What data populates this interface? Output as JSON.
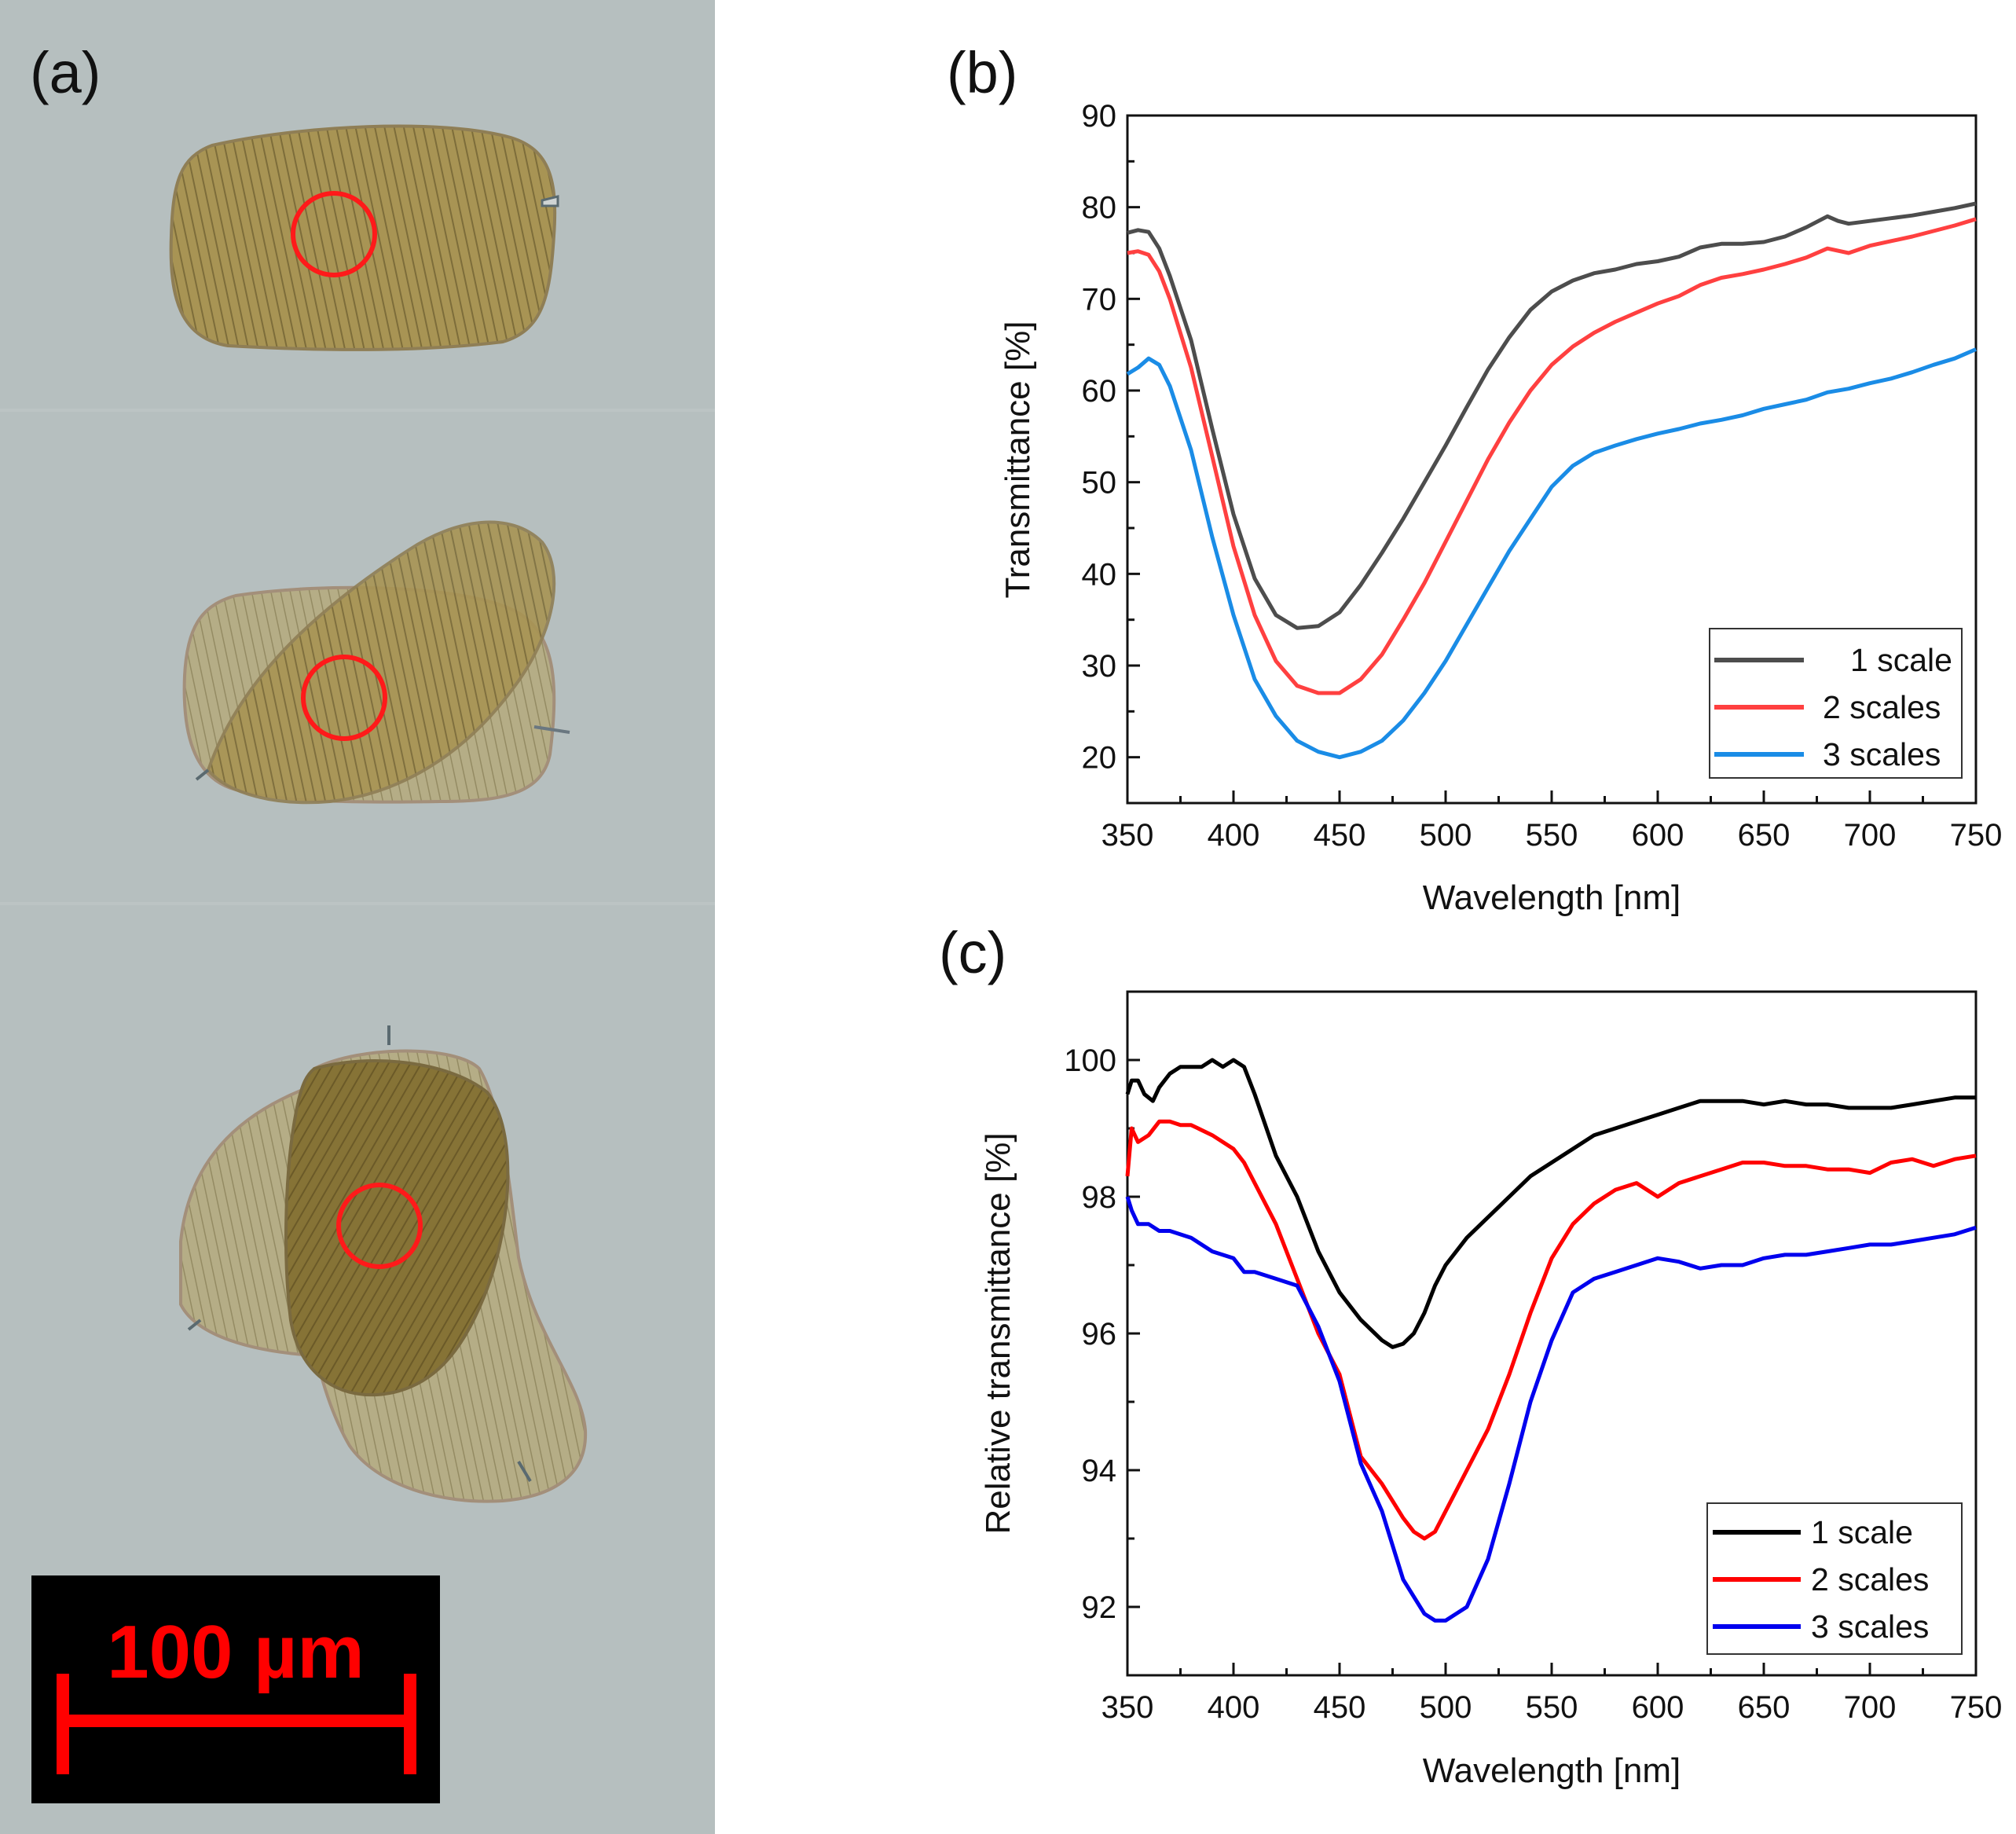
{
  "panel_a": {
    "label": "(a)",
    "scale_bar_text": "100 µm",
    "scale_bar_color": "#ff0000",
    "background_color": "#b4bdbd",
    "scale_fill": "#9c8848",
    "circle_color": "#ff1a1a"
  },
  "chart_data": [
    {
      "id": "b",
      "panel_label": "(b)",
      "type": "line",
      "xlabel": "Wavelength [nm]",
      "ylabel": "Transmittance [%]",
      "xlim": [
        350,
        750
      ],
      "ylim": [
        15,
        90
      ],
      "xticks": [
        350,
        400,
        450,
        500,
        550,
        600,
        650,
        700,
        750
      ],
      "yticks": [
        20,
        30,
        40,
        50,
        60,
        70,
        80,
        90
      ],
      "legend_position": "bottom-right",
      "series": [
        {
          "name": "1 scale",
          "color": "#4d4d4d",
          "x": [
            350,
            355,
            360,
            365,
            370,
            380,
            390,
            400,
            410,
            420,
            430,
            440,
            450,
            460,
            470,
            480,
            490,
            500,
            510,
            520,
            530,
            540,
            550,
            560,
            570,
            580,
            590,
            600,
            610,
            620,
            630,
            640,
            650,
            660,
            670,
            675,
            680,
            685,
            690,
            700,
            710,
            720,
            730,
            740,
            750
          ],
          "y": [
            77.2,
            77.5,
            77.3,
            75.5,
            72.5,
            65.5,
            55.8,
            46.5,
            39.5,
            35.5,
            34.1,
            34.3,
            35.8,
            38.8,
            42.3,
            46.0,
            50.0,
            54.0,
            58.2,
            62.3,
            65.8,
            68.8,
            70.8,
            72.0,
            72.8,
            73.2,
            73.8,
            74.1,
            74.6,
            75.6,
            76.0,
            76.0,
            76.2,
            76.8,
            77.8,
            78.4,
            79.0,
            78.5,
            78.2,
            78.5,
            78.8,
            79.1,
            79.5,
            79.9,
            80.4
          ]
        },
        {
          "name": "2 scales",
          "color": "#ff4040",
          "x": [
            350,
            355,
            360,
            365,
            370,
            380,
            390,
            400,
            410,
            420,
            430,
            440,
            450,
            460,
            470,
            480,
            490,
            500,
            510,
            520,
            530,
            540,
            550,
            560,
            570,
            580,
            590,
            600,
            610,
            620,
            630,
            640,
            650,
            660,
            670,
            680,
            690,
            700,
            710,
            720,
            730,
            740,
            750
          ],
          "y": [
            75.0,
            75.2,
            74.8,
            73.0,
            70.0,
            62.5,
            52.8,
            43.0,
            35.5,
            30.5,
            27.8,
            27.0,
            27.0,
            28.5,
            31.2,
            35.0,
            39.0,
            43.5,
            48.0,
            52.5,
            56.5,
            60.0,
            62.8,
            64.8,
            66.3,
            67.5,
            68.5,
            69.5,
            70.3,
            71.5,
            72.3,
            72.7,
            73.2,
            73.8,
            74.5,
            75.5,
            75.0,
            75.8,
            76.3,
            76.8,
            77.4,
            78.0,
            78.7
          ]
        },
        {
          "name": "3 scales",
          "color": "#1a8ce6",
          "x": [
            350,
            355,
            360,
            365,
            370,
            380,
            390,
            400,
            410,
            420,
            430,
            440,
            450,
            460,
            470,
            480,
            490,
            500,
            510,
            520,
            530,
            540,
            550,
            560,
            570,
            580,
            590,
            600,
            610,
            620,
            630,
            640,
            650,
            660,
            670,
            680,
            690,
            700,
            710,
            720,
            730,
            740,
            750
          ],
          "y": [
            61.8,
            62.5,
            63.5,
            62.8,
            60.5,
            53.5,
            44.0,
            35.5,
            28.5,
            24.5,
            21.8,
            20.6,
            20.0,
            20.6,
            21.8,
            24.0,
            27.0,
            30.5,
            34.5,
            38.5,
            42.5,
            46.0,
            49.5,
            51.8,
            53.2,
            54.0,
            54.7,
            55.3,
            55.8,
            56.4,
            56.8,
            57.3,
            58.0,
            58.5,
            59.0,
            59.8,
            60.2,
            60.8,
            61.3,
            62.0,
            62.8,
            63.5,
            64.5
          ]
        }
      ]
    },
    {
      "id": "c",
      "panel_label": "(c)",
      "type": "line",
      "xlabel": "Wavelength [nm]",
      "ylabel": "Relative transmittance [%]",
      "xlim": [
        350,
        750
      ],
      "ylim": [
        91,
        101
      ],
      "xticks": [
        350,
        400,
        450,
        500,
        550,
        600,
        650,
        700,
        750
      ],
      "yticks": [
        92,
        94,
        96,
        98,
        100
      ],
      "legend_position": "bottom-right",
      "series": [
        {
          "name": "1 scale",
          "color": "#000000",
          "x": [
            350,
            352,
            355,
            358,
            362,
            365,
            370,
            375,
            380,
            385,
            390,
            395,
            400,
            405,
            410,
            420,
            430,
            440,
            450,
            460,
            470,
            475,
            480,
            485,
            490,
            495,
            500,
            510,
            520,
            530,
            540,
            550,
            560,
            570,
            580,
            590,
            600,
            610,
            620,
            630,
            640,
            650,
            660,
            670,
            680,
            690,
            700,
            710,
            720,
            730,
            740,
            750
          ],
          "y": [
            99.5,
            99.7,
            99.7,
            99.5,
            99.4,
            99.6,
            99.8,
            99.9,
            99.9,
            99.9,
            100.0,
            99.9,
            100.0,
            99.9,
            99.5,
            98.6,
            98.0,
            97.2,
            96.6,
            96.2,
            95.9,
            95.8,
            95.85,
            96.0,
            96.3,
            96.7,
            97.0,
            97.4,
            97.7,
            98.0,
            98.3,
            98.5,
            98.7,
            98.9,
            99.0,
            99.1,
            99.2,
            99.3,
            99.4,
            99.4,
            99.4,
            99.35,
            99.4,
            99.35,
            99.35,
            99.3,
            99.3,
            99.3,
            99.35,
            99.4,
            99.45,
            99.45
          ]
        },
        {
          "name": "2 scales",
          "color": "#ff0000",
          "x": [
            350,
            352,
            355,
            360,
            365,
            370,
            375,
            380,
            390,
            400,
            405,
            410,
            420,
            430,
            440,
            450,
            460,
            470,
            480,
            485,
            490,
            495,
            500,
            505,
            510,
            520,
            530,
            540,
            550,
            560,
            570,
            580,
            590,
            600,
            610,
            620,
            630,
            640,
            650,
            660,
            670,
            680,
            690,
            700,
            710,
            720,
            730,
            740,
            750
          ],
          "y": [
            98.3,
            99.0,
            98.8,
            98.9,
            99.1,
            99.1,
            99.05,
            99.05,
            98.9,
            98.7,
            98.5,
            98.2,
            97.6,
            96.8,
            96.0,
            95.4,
            94.2,
            93.8,
            93.3,
            93.1,
            93.0,
            93.1,
            93.4,
            93.7,
            94.0,
            94.6,
            95.4,
            96.3,
            97.1,
            97.6,
            97.9,
            98.1,
            98.2,
            98.0,
            98.2,
            98.3,
            98.4,
            98.5,
            98.5,
            98.45,
            98.45,
            98.4,
            98.4,
            98.35,
            98.5,
            98.55,
            98.45,
            98.55,
            98.6
          ]
        },
        {
          "name": "3 scales",
          "color": "#0000ee",
          "x": [
            350,
            352,
            355,
            360,
            365,
            370,
            380,
            390,
            400,
            405,
            410,
            420,
            430,
            440,
            450,
            460,
            470,
            480,
            490,
            495,
            500,
            505,
            510,
            520,
            530,
            540,
            550,
            560,
            570,
            580,
            590,
            600,
            610,
            620,
            630,
            640,
            650,
            660,
            670,
            680,
            690,
            700,
            710,
            720,
            730,
            740,
            750
          ],
          "y": [
            98.0,
            97.8,
            97.6,
            97.6,
            97.5,
            97.5,
            97.4,
            97.2,
            97.1,
            96.9,
            96.9,
            96.8,
            96.7,
            96.1,
            95.3,
            94.1,
            93.4,
            92.4,
            91.9,
            91.8,
            91.8,
            91.9,
            92.0,
            92.7,
            93.8,
            95.0,
            95.9,
            96.6,
            96.8,
            96.9,
            97.0,
            97.1,
            97.05,
            96.95,
            97.0,
            97.0,
            97.1,
            97.15,
            97.15,
            97.2,
            97.25,
            97.3,
            97.3,
            97.35,
            97.4,
            97.45,
            97.55
          ]
        }
      ]
    }
  ]
}
